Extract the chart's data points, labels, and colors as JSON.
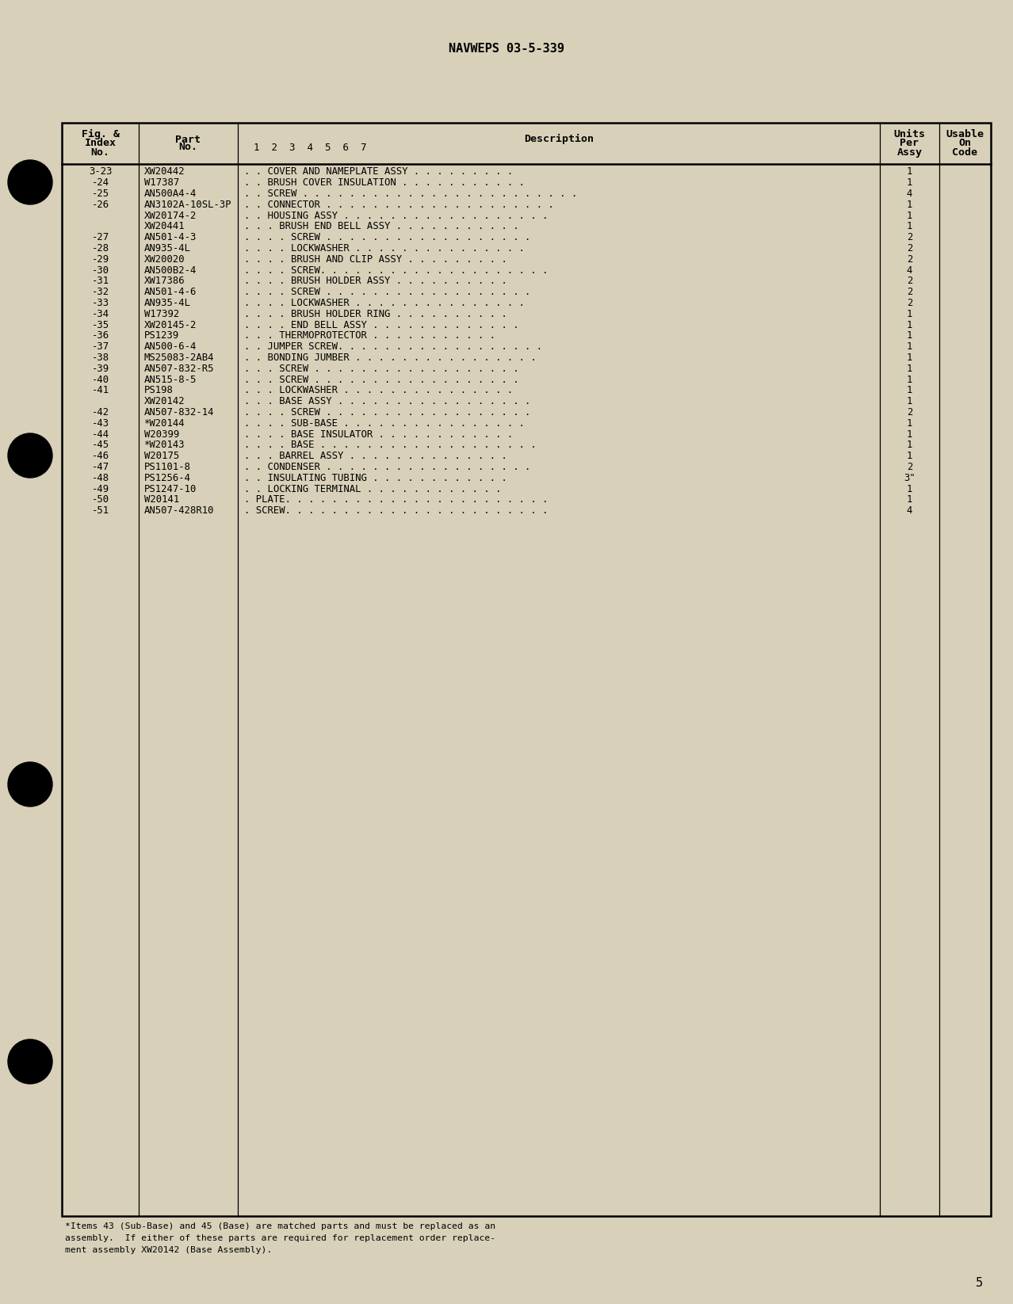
{
  "page_header": "NAVWEPS 03-5-339",
  "background_color": "#d8d0b8",
  "page_number": "5",
  "rows": [
    {
      "index": "3-23",
      "part": "XW20442",
      "desc_indent": 2,
      "description": "COVER AND NAMEPLATE ASSY . . . . . . . . .",
      "units": "1"
    },
    {
      "index": "-24",
      "part": "W17387",
      "desc_indent": 2,
      "description": "BRUSH COVER INSULATION . . . . . . . . . . .",
      "units": "1"
    },
    {
      "index": "-25",
      "part": "AN500A4-4",
      "desc_indent": 2,
      "description": "SCREW . . . . . . . . . . . . . . . . . . . . . . . .",
      "units": "4"
    },
    {
      "index": "-26",
      "part": "AN3102A-10SL-3P",
      "desc_indent": 2,
      "description": "CONNECTOR . . . . . . . . . . . . . . . . . . . .",
      "units": "1"
    },
    {
      "index": "",
      "part": "XW20174-2",
      "desc_indent": 2,
      "description": "HOUSING ASSY . . . . . . . . . . . . . . . . . .",
      "units": "1"
    },
    {
      "index": "",
      "part": "XW20441",
      "desc_indent": 3,
      "description": "BRUSH END BELL ASSY . . . . . . . . . . .",
      "units": "1"
    },
    {
      "index": "-27",
      "part": "AN501-4-3",
      "desc_indent": 4,
      "description": "SCREW . . . . . . . . . . . . . . . . . .",
      "units": "2"
    },
    {
      "index": "-28",
      "part": "AN935-4L",
      "desc_indent": 4,
      "description": "LOCKWASHER . . . . . . . . . . . . . . .",
      "units": "2"
    },
    {
      "index": "-29",
      "part": "XW20020",
      "desc_indent": 4,
      "description": "BRUSH AND CLIP ASSY . . . . . . . . .",
      "units": "2"
    },
    {
      "index": "-30",
      "part": "AN500B2-4",
      "desc_indent": 4,
      "description": "SCREW. . . . . . . . . . . . . . . . . . . .",
      "units": "4"
    },
    {
      "index": "-31",
      "part": "XW17386",
      "desc_indent": 4,
      "description": "BRUSH HOLDER ASSY . . . . . . . . . .",
      "units": "2"
    },
    {
      "index": "-32",
      "part": "AN501-4-6",
      "desc_indent": 4,
      "description": "SCREW . . . . . . . . . . . . . . . . . .",
      "units": "2"
    },
    {
      "index": "-33",
      "part": "AN935-4L",
      "desc_indent": 4,
      "description": "LOCKWASHER . . . . . . . . . . . . . . .",
      "units": "2"
    },
    {
      "index": "-34",
      "part": "W17392",
      "desc_indent": 4,
      "description": "BRUSH HOLDER RING . . . . . . . . . .",
      "units": "1"
    },
    {
      "index": "-35",
      "part": "XW20145-2",
      "desc_indent": 4,
      "description": "END BELL ASSY . . . . . . . . . . . . .",
      "units": "1"
    },
    {
      "index": "-36",
      "part": "PS1239",
      "desc_indent": 3,
      "description": "THERMOPROTECTOR . . . . . . . . . . .",
      "units": "1"
    },
    {
      "index": "-37",
      "part": "AN500-6-4",
      "desc_indent": 2,
      "description": "JUMPER SCREW. . . . . . . . . . . . . . . . . .",
      "units": "1"
    },
    {
      "index": "-38",
      "part": "MS25083-2AB4",
      "desc_indent": 2,
      "description": "BONDING JUMBER . . . . . . . . . . . . . . . .",
      "units": "1"
    },
    {
      "index": "-39",
      "part": "AN507-832-R5",
      "desc_indent": 3,
      "description": "SCREW . . . . . . . . . . . . . . . . . .",
      "units": "1"
    },
    {
      "index": "-40",
      "part": "AN515-8-5",
      "desc_indent": 3,
      "description": "SCREW . . . . . . . . . . . . . . . . . .",
      "units": "1"
    },
    {
      "index": "-41",
      "part": "PS198",
      "desc_indent": 3,
      "description": "LOCKWASHER . . . . . . . . . . . . . . .",
      "units": "1"
    },
    {
      "index": "",
      "part": "XW20142",
      "desc_indent": 3,
      "description": "BASE ASSY . . . . . . . . . . . . . . . . .",
      "units": "1"
    },
    {
      "index": "-42",
      "part": "AN507-832-14",
      "desc_indent": 4,
      "description": "SCREW . . . . . . . . . . . . . . . . . .",
      "units": "2"
    },
    {
      "index": "-43",
      "part": "*W20144",
      "desc_indent": 4,
      "description": "SUB-BASE . . . . . . . . . . . . . . . .",
      "units": "1"
    },
    {
      "index": "-44",
      "part": "W20399",
      "desc_indent": 4,
      "description": "BASE INSULATOR . . . . . . . . . . . .",
      "units": "1"
    },
    {
      "index": "-45",
      "part": "*W20143",
      "desc_indent": 4,
      "description": "BASE . . . . . . . . . . . . . . . . . . .",
      "units": "1"
    },
    {
      "index": "-46",
      "part": "W20175",
      "desc_indent": 3,
      "description": "BARREL ASSY . . . . . . . . . . . . . .",
      "units": "1"
    },
    {
      "index": "-47",
      "part": "PS1101-8",
      "desc_indent": 2,
      "description": "CONDENSER . . . . . . . . . . . . . . . . . .",
      "units": "2"
    },
    {
      "index": "-48",
      "part": "PS1256-4",
      "desc_indent": 2,
      "description": "INSULATING TUBING . . . . . . . . . . . .",
      "units": "3\""
    },
    {
      "index": "-49",
      "part": "PS1247-10",
      "desc_indent": 2,
      "description": "LOCKING TERMINAL . . . . . . . . . . . .",
      "units": "1"
    },
    {
      "index": "-50",
      "part": "W20141",
      "desc_indent": 1,
      "description": "PLATE. . . . . . . . . . . . . . . . . . . . . . .",
      "units": "1"
    },
    {
      "index": "-51",
      "part": "AN507-428R10",
      "desc_indent": 1,
      "description": "SCREW. . . . . . . . . . . . . . . . . . . . . . .",
      "units": "4"
    }
  ],
  "footnote_line1": "*Items 43 (Sub-Base) and 45 (Base) are matched parts and must be replaced as an",
  "footnote_line2": "assembly.  If either of these parts are required for replacement order replace-",
  "footnote_line3": "ment assembly XW20142 (Base Assembly)."
}
